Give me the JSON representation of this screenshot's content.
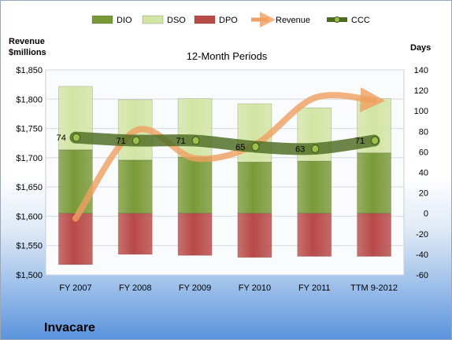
{
  "chart_data": {
    "type": "combo",
    "title": "12-Month Periods",
    "categories": [
      "FY 2007",
      "FY 2008",
      "FY 2009",
      "FY 2010",
      "FY 2011",
      "TTM 9-2012"
    ],
    "left_axis": {
      "title_lines": [
        "Revenue",
        "$millions"
      ],
      "range": [
        1500,
        1850
      ],
      "ticks": [
        "$1,500",
        "$1,550",
        "$1,600",
        "$1,650",
        "$1,700",
        "$1,750",
        "$1,800",
        "$1,850"
      ]
    },
    "right_axis": {
      "title": "Days",
      "range": [
        -60,
        140
      ],
      "ticks": [
        "-60",
        "-40",
        "-20",
        "0",
        "20",
        "40",
        "60",
        "80",
        "100",
        "120",
        "140"
      ]
    },
    "stacked_bar_series": [
      {
        "name": "DPO",
        "axis": "right",
        "color": "#b84a48",
        "segments": [
          [
            -50,
            0
          ],
          [
            -40,
            0
          ],
          [
            -41,
            0
          ],
          [
            -43,
            0
          ],
          [
            -42,
            0
          ],
          [
            -42,
            0
          ]
        ]
      },
      {
        "name": "DIO",
        "axis": "right",
        "color": "#7a9a38",
        "segments": [
          [
            0,
            62
          ],
          [
            0,
            52
          ],
          [
            0,
            55
          ],
          [
            0,
            50
          ],
          [
            0,
            51
          ],
          [
            0,
            59
          ]
        ]
      },
      {
        "name": "DSO",
        "axis": "right",
        "color": "#d3e5a4",
        "segments": [
          [
            62,
            124
          ],
          [
            52,
            111
          ],
          [
            55,
            112
          ],
          [
            50,
            107
          ],
          [
            51,
            103
          ],
          [
            59,
            112
          ]
        ]
      }
    ],
    "line_series": [
      {
        "name": "Revenue",
        "axis": "left",
        "color": "#f0a060",
        "values": [
          1596,
          1746,
          1699,
          1722,
          1802,
          1798
        ]
      },
      {
        "name": "CCC",
        "axis": "right",
        "color": "#4d6b22",
        "values": [
          74,
          71,
          71,
          65,
          63,
          71
        ],
        "labels": [
          "74",
          "71",
          "71",
          "65",
          "63",
          "71"
        ]
      }
    ],
    "legend": {
      "placement": "top",
      "entries": [
        {
          "name": "DIO",
          "kind": "bar",
          "color": "#7a9a38"
        },
        {
          "name": "DSO",
          "kind": "bar",
          "color": "#d3e5a4"
        },
        {
          "name": "DPO",
          "kind": "bar",
          "color": "#b84a48"
        },
        {
          "name": "Revenue",
          "kind": "arrow",
          "color": "#f0a060"
        },
        {
          "name": "CCC",
          "kind": "line",
          "color": "#4d6b22"
        }
      ]
    },
    "grid": true
  },
  "company": "Invacare"
}
